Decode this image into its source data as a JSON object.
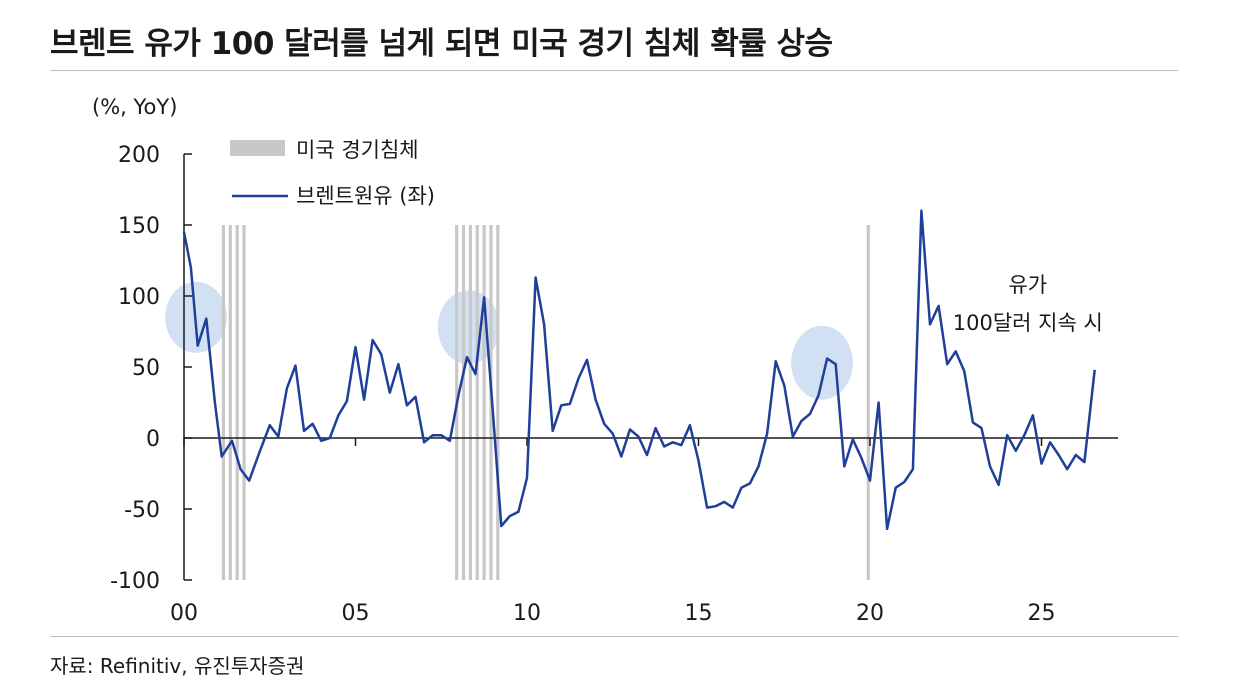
{
  "title": "브렌트 유가 100 달러를 넘게 되면 미국 경기 침체 확률 상승",
  "source": "자료: Refinitiv, 유진투자증권",
  "colors": {
    "line": "#1f3f99",
    "recession": "#c8c8c8",
    "highlight": "#c9dcf1",
    "axis": "#1a1a1a"
  },
  "chart_data": {
    "type": "line",
    "ylabel": "(%, YoY)",
    "ylim": [
      -100,
      200
    ],
    "xlim": [
      2000,
      2027
    ],
    "y_ticks": [
      200,
      150,
      100,
      50,
      0,
      -50,
      -100
    ],
    "x_ticks": [
      {
        "value": 2000,
        "label": "00"
      },
      {
        "value": 2005,
        "label": "05"
      },
      {
        "value": 2010,
        "label": "10"
      },
      {
        "value": 2015,
        "label": "15"
      },
      {
        "value": 2020,
        "label": "20"
      },
      {
        "value": 2025,
        "label": "25"
      }
    ],
    "legend": [
      {
        "name": "미국 경기침체",
        "kind": "band"
      },
      {
        "name": "브렌트원유 (좌)",
        "kind": "line"
      }
    ],
    "annotation": {
      "line1": "유가",
      "line2": "100달러 지속 시",
      "x": 2024.6,
      "y": 80
    },
    "recession_lines": [
      2001.15,
      2001.35,
      2001.55,
      2001.75,
      2007.95,
      2008.15,
      2008.35,
      2008.55,
      2008.75,
      2008.95,
      2009.15,
      2019.95
    ],
    "highlights": [
      {
        "x": 2000.35,
        "y": 85,
        "rx_years": 0.9,
        "ry_value": 25
      },
      {
        "x": 2008.3,
        "y": 78,
        "rx_years": 0.9,
        "ry_value": 26
      },
      {
        "x": 2018.6,
        "y": 53,
        "rx_years": 0.9,
        "ry_value": 26
      }
    ],
    "series": [
      {
        "name": "브렌트원유 (좌)",
        "x": [
          2000.0,
          2000.2,
          2000.4,
          2000.65,
          2000.9,
          2001.1,
          2001.4,
          2001.65,
          2001.9,
          2002.2,
          2002.5,
          2002.75,
          2003.0,
          2003.25,
          2003.5,
          2003.75,
          2004.0,
          2004.25,
          2004.5,
          2004.75,
          2005.0,
          2005.25,
          2005.5,
          2005.75,
          2006.0,
          2006.25,
          2006.5,
          2006.75,
          2007.0,
          2007.25,
          2007.5,
          2007.75,
          2008.0,
          2008.25,
          2008.5,
          2008.75,
          2009.0,
          2009.25,
          2009.5,
          2009.75,
          2010.0,
          2010.25,
          2010.5,
          2010.75,
          2011.0,
          2011.25,
          2011.5,
          2011.75,
          2012.0,
          2012.25,
          2012.5,
          2012.75,
          2013.0,
          2013.25,
          2013.5,
          2013.75,
          2014.0,
          2014.25,
          2014.5,
          2014.75,
          2015.0,
          2015.25,
          2015.5,
          2015.75,
          2016.0,
          2016.25,
          2016.5,
          2016.75,
          2017.0,
          2017.25,
          2017.5,
          2017.75,
          2018.0,
          2018.25,
          2018.5,
          2018.75,
          2019.0,
          2019.25,
          2019.5,
          2019.75,
          2020.0,
          2020.25,
          2020.5,
          2020.75,
          2021.0,
          2021.25,
          2021.5,
          2021.75,
          2022.0,
          2022.25,
          2022.5,
          2022.75,
          2023.0,
          2023.25,
          2023.5,
          2023.75,
          2024.0,
          2024.25,
          2024.5,
          2024.75,
          2025.0,
          2025.25,
          2025.5,
          2025.75,
          2026.0,
          2026.25,
          2026.55
        ],
        "values": [
          145,
          120,
          65,
          84,
          25,
          -13,
          -2,
          -22,
          -30,
          -10,
          9,
          1,
          35,
          51,
          5,
          10,
          -2,
          0,
          16,
          26,
          64,
          27,
          69,
          59,
          32,
          52,
          23,
          29,
          -3,
          2,
          2,
          -2,
          30,
          57,
          45,
          99,
          20,
          -62,
          -55,
          -52,
          -28,
          113,
          80,
          5,
          23,
          24,
          42,
          55,
          27,
          10,
          3,
          -13,
          6,
          1,
          -12,
          7,
          -6,
          -3,
          -5,
          9,
          -16,
          -49,
          -48,
          -45,
          -49,
          -35,
          -32,
          -20,
          3,
          54,
          37,
          1,
          12,
          17,
          30,
          56,
          52,
          -20,
          -1,
          -14,
          -30,
          25,
          -64,
          -35,
          -31,
          -22,
          160,
          80,
          93,
          52,
          61,
          47,
          11,
          7,
          -20,
          -33,
          2,
          -9,
          2,
          16,
          -18,
          -3,
          -12,
          -22,
          -12,
          -17,
          48
        ]
      }
    ]
  }
}
